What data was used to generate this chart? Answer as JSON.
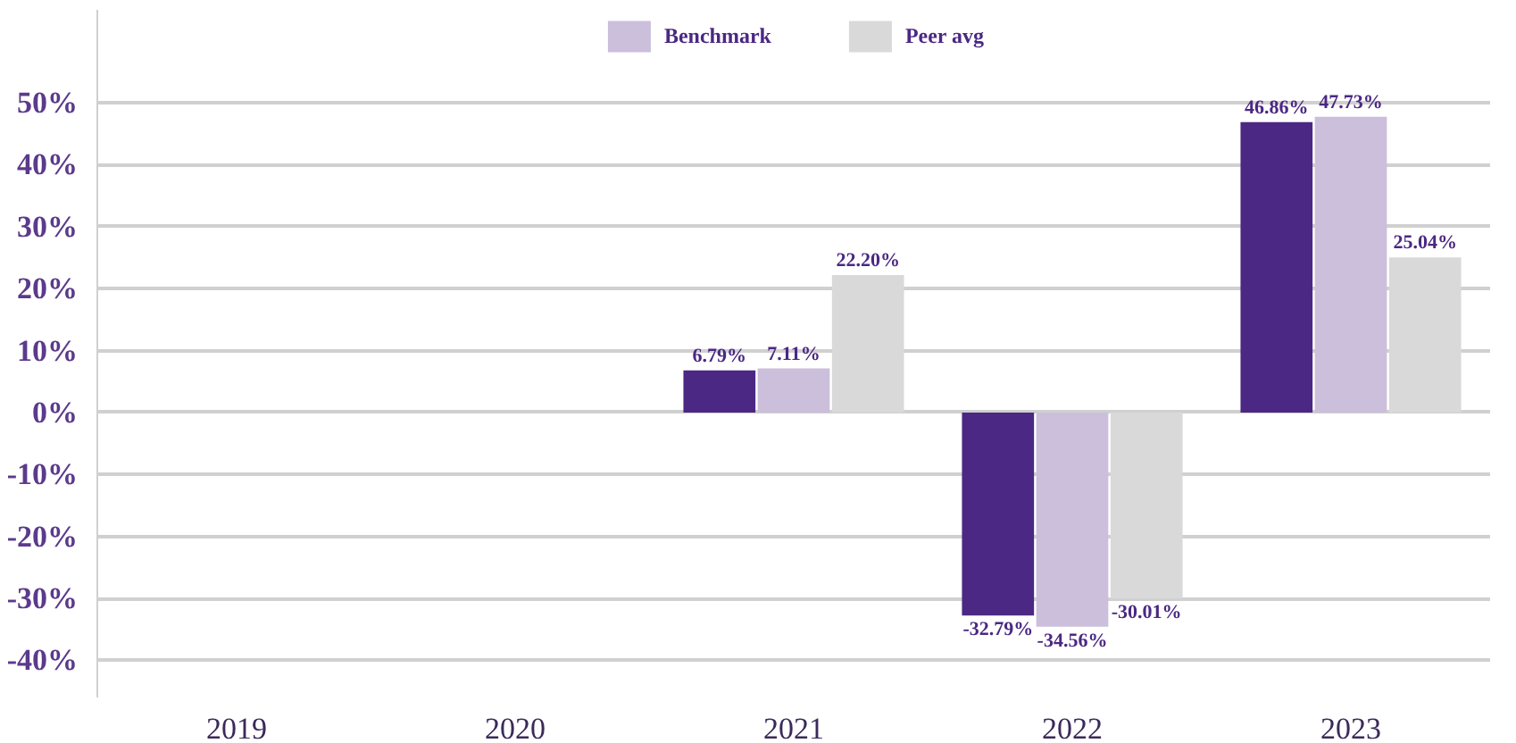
{
  "chart_data": {
    "type": "bar",
    "categories": [
      "2019",
      "2020",
      "2021",
      "2022",
      "2023"
    ],
    "series": [
      {
        "color": "#4b2883",
        "values": [
          null,
          null,
          6.79,
          -32.79,
          46.86
        ],
        "value_labels": [
          null,
          null,
          "6.79%",
          "-32.79%",
          "46.86%"
        ]
      },
      {
        "name": "Benchmark",
        "color": "#cbbfdc",
        "values": [
          null,
          null,
          7.11,
          -34.56,
          47.73
        ],
        "value_labels": [
          null,
          null,
          "7.11%",
          "-34.56%",
          "47.73%"
        ]
      },
      {
        "name": "Peer avg",
        "color": "#d9d9d9",
        "values": [
          null,
          null,
          22.2,
          -30.01,
          25.04
        ],
        "value_labels": [
          null,
          null,
          "22.20%",
          "-30.01%",
          "25.04%"
        ]
      }
    ],
    "ylim": [
      -46,
      65
    ],
    "yticks": [
      {
        "value": -40,
        "label": "-40%"
      },
      {
        "value": -30,
        "label": "-30%"
      },
      {
        "value": -20,
        "label": "-20%"
      },
      {
        "value": -10,
        "label": "-10%"
      },
      {
        "value": 0,
        "label": "0%"
      },
      {
        "value": 10,
        "label": "10%"
      },
      {
        "value": 20,
        "label": "20%"
      },
      {
        "value": 30,
        "label": "30%"
      },
      {
        "value": 40,
        "label": "40%"
      },
      {
        "value": 50,
        "label": "50%"
      }
    ],
    "grid": "y",
    "legend": "top"
  }
}
